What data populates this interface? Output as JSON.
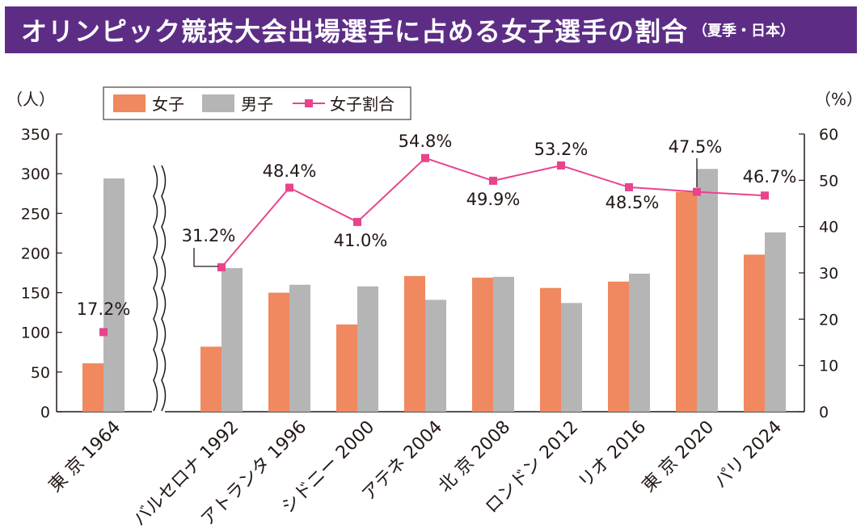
{
  "title": {
    "main": "オリンピック競技大会出場選手に占める女子選手の割合",
    "sub": "（夏季・日本）"
  },
  "left_unit": "（人）",
  "right_unit": "（%）",
  "legend": {
    "female": "女子",
    "male": "男子",
    "ratio": "女子割合"
  },
  "colors": {
    "female": "#f08860",
    "male": "#b5b5b6",
    "ratio": "#e8448c",
    "title_bg": "#5d2d86"
  },
  "chart_data": {
    "type": "bar",
    "categories": [
      "東 京 1964",
      "バルセロナ 1992",
      "アトランタ 1996",
      "シドニー 2000",
      "アテネ 2004",
      "北 京 2008",
      "ロンドン 2012",
      "リオ 2016",
      "東 京 2020",
      "パリ 2024"
    ],
    "series": [
      {
        "name": "女子",
        "type": "bar",
        "axis": "left",
        "values": [
          61,
          82,
          150,
          110,
          171,
          169,
          156,
          164,
          277,
          198
        ]
      },
      {
        "name": "男子",
        "type": "bar",
        "axis": "left",
        "values": [
          294,
          181,
          160,
          158,
          141,
          170,
          137,
          174,
          306,
          226
        ]
      },
      {
        "name": "女子割合",
        "type": "line",
        "axis": "right",
        "values": [
          17.2,
          31.2,
          48.4,
          41.0,
          54.8,
          49.9,
          53.2,
          48.5,
          47.5,
          46.7
        ]
      }
    ],
    "ratio_labels": [
      "17.2%",
      "31.2%",
      "48.4%",
      "41.0%",
      "54.8%",
      "49.9%",
      "53.2%",
      "48.5%",
      "47.5%",
      "46.7%"
    ],
    "ylim_left": [
      0,
      350
    ],
    "ylim_right": [
      0,
      60
    ],
    "yticks_left": [
      "0",
      "50",
      "100",
      "150",
      "200",
      "250",
      "300",
      "350"
    ],
    "yticks_right": [
      "0",
      "10",
      "20",
      "30",
      "40",
      "50",
      "60"
    ],
    "axis_break_after": "東 京 1964",
    "grid": false,
    "legend_position": "top-left"
  }
}
